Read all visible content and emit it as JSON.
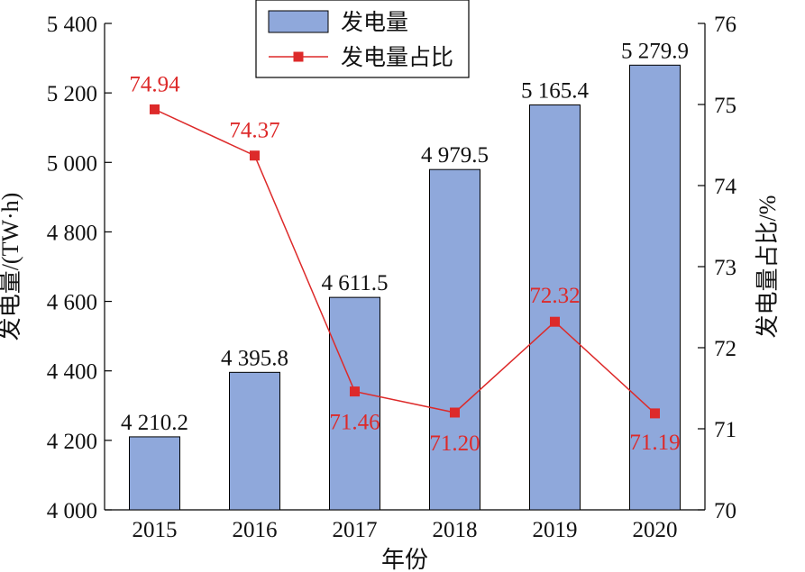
{
  "chart_data": {
    "type": "bar",
    "categories": [
      "2015",
      "2016",
      "2017",
      "2018",
      "2019",
      "2020"
    ],
    "xlabel": "年份",
    "y_left_label": "发电量/(TW·h)",
    "y_right_label": "发电量占比/%",
    "y_left": {
      "range": [
        4000,
        5400
      ],
      "ticks": [
        4000,
        4200,
        4400,
        4600,
        4800,
        5000,
        5200,
        5400
      ],
      "tick_labels": [
        "4 000",
        "4 200",
        "4 400",
        "4 600",
        "4 800",
        "5 000",
        "5 200",
        "5 400"
      ]
    },
    "y_right": {
      "range": [
        70,
        76
      ],
      "ticks": [
        70,
        71,
        72,
        73,
        74,
        75,
        76
      ],
      "tick_labels": [
        "70",
        "71",
        "72",
        "73",
        "74",
        "75",
        "76"
      ]
    },
    "series": [
      {
        "name": "发电量",
        "type": "bar",
        "axis": "left",
        "values": [
          4210.2,
          4395.8,
          4611.5,
          4979.5,
          5165.4,
          5279.9
        ],
        "labels": [
          "4 210.2",
          "4 395.8",
          "4 611.5",
          "4 979.5",
          "5 165.4",
          "5 279.9"
        ],
        "color": "#8fa8db"
      },
      {
        "name": "发电量占比",
        "type": "line",
        "axis": "right",
        "values": [
          74.94,
          74.37,
          71.46,
          71.2,
          72.32,
          71.19
        ],
        "labels": [
          "74.94",
          "74.37",
          "71.46",
          "71.20",
          "72.32",
          "71.19"
        ],
        "color": "#dd2a2a"
      }
    ],
    "legend": {
      "placement": "top-center",
      "items": [
        "发电量",
        "发电量占比"
      ]
    }
  }
}
